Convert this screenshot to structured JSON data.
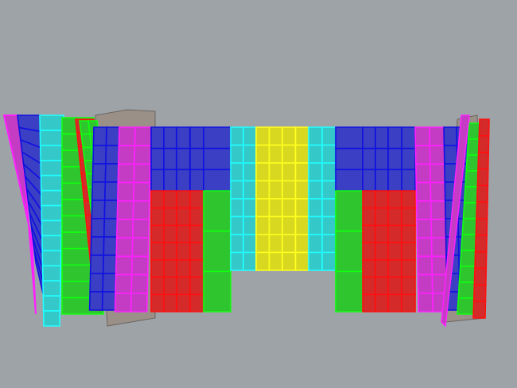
{
  "viewport": {
    "background": "#9ea3a8"
  },
  "colors": {
    "blue": "#3b3fc4",
    "blue_edge": "#1010e0",
    "red": "#d42a2a",
    "red_edge": "#ff1010",
    "green": "#2fc52f",
    "green_edge": "#10ff10",
    "cyan": "#35c8c8",
    "cyan_edge": "#20ffff",
    "yellow": "#d8d820",
    "yellow_edge": "#ffff20",
    "magenta": "#c43cc4",
    "magenta_edge": "#ff20ff",
    "backing": "#9a9088"
  },
  "columns": [
    {
      "top": "blue",
      "bottom": "blue"
    },
    {
      "top": "magenta",
      "bottom": "magenta"
    },
    {
      "top": "blue",
      "bottom": "red"
    },
    {
      "top": "blue",
      "bottom": "red"
    },
    {
      "top": "blue",
      "bottom": "green"
    },
    {
      "top": "cyan",
      "bottom": "cyan"
    },
    {
      "top": "yellow",
      "bottom": "yellow"
    },
    {
      "top": "yellow",
      "bottom": "yellow"
    },
    {
      "top": "cyan",
      "bottom": "cyan"
    },
    {
      "top": "blue",
      "bottom": "green"
    },
    {
      "top": "blue",
      "bottom": "red"
    },
    {
      "top": "blue",
      "bottom": "red"
    },
    {
      "top": "magenta",
      "bottom": "magenta"
    },
    {
      "top": "blue",
      "bottom": "blue"
    }
  ]
}
